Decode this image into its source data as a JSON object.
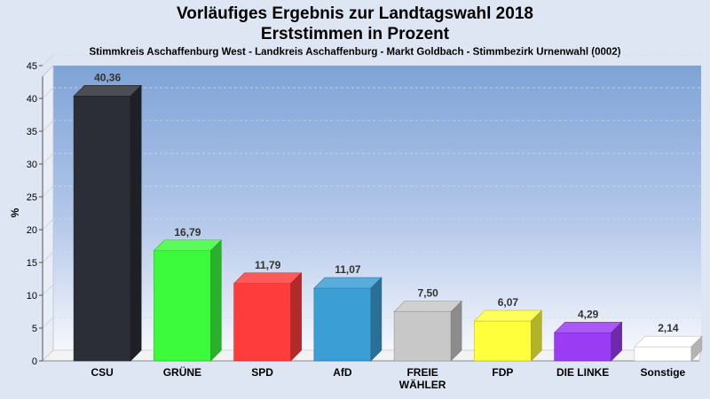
{
  "title_line1": "Vorläufiges Ergebnis zur Landtagswahl 2018",
  "title_line2": "Erststimmen in Prozent",
  "subtitle": "Stimmkreis Aschaffenburg West - Landkreis Aschaffenburg - Markt Goldbach - Stimmbezirk Urnenwahl (0002)",
  "chart_data": {
    "type": "bar",
    "title": "Vorläufiges Ergebnis zur Landtagswahl 2018 — Erststimmen in Prozent",
    "subtitle": "Stimmkreis Aschaffenburg West - Landkreis Aschaffenburg - Markt Goldbach - Stimmbezirk Urnenwahl (0002)",
    "xlabel": "",
    "ylabel": "%",
    "ylim": [
      0,
      45
    ],
    "yticks": [
      0,
      5,
      10,
      15,
      20,
      25,
      30,
      35,
      40,
      45
    ],
    "grid": true,
    "legend": "none",
    "categories": [
      "CSU",
      "GRÜNE",
      "SPD",
      "AfD",
      "FREIE WÄHLER",
      "FDP",
      "DIE LINKE",
      "Sonstige"
    ],
    "category_lines": [
      [
        "CSU"
      ],
      [
        "GRÜNE"
      ],
      [
        "SPD"
      ],
      [
        "AfD"
      ],
      [
        "FREIE",
        "WÄHLER"
      ],
      [
        "FDP"
      ],
      [
        "DIE LINKE"
      ],
      [
        "Sonstige"
      ]
    ],
    "values": [
      40.36,
      16.79,
      11.79,
      11.07,
      7.5,
      6.07,
      4.29,
      2.14
    ],
    "value_labels": [
      "40,36",
      "16,79",
      "11,79",
      "11,07",
      "7,50",
      "6,07",
      "4,29",
      "2,14"
    ],
    "colors": [
      "#2b2e36",
      "#3cfb3c",
      "#ff3c3c",
      "#3b9fd6",
      "#c8c8c8",
      "#ffff3c",
      "#9b3cf5",
      "#ffffff"
    ]
  }
}
